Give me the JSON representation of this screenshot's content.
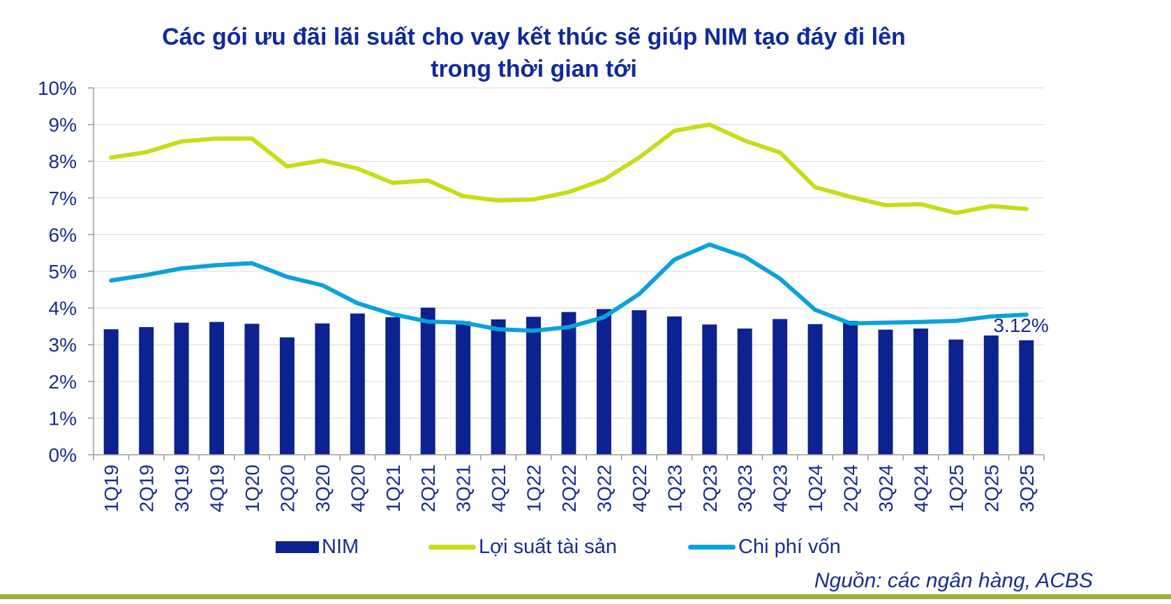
{
  "chart_data": {
    "type": "bar+line",
    "title": "Các gói ưu đãi lãi suất cho vay kết thúc sẽ giúp NIM tạo đáy đi lên trong thời gian tới",
    "title_lines": [
      "Các gói ưu đãi lãi suất cho vay kết thúc sẽ giúp NIM tạo đáy đi lên",
      "trong thời gian tới"
    ],
    "categories": [
      "1Q19",
      "2Q19",
      "3Q19",
      "4Q19",
      "1Q20",
      "2Q20",
      "3Q20",
      "4Q20",
      "1Q21",
      "2Q21",
      "3Q21",
      "4Q21",
      "1Q22",
      "2Q22",
      "3Q22",
      "4Q22",
      "1Q23",
      "2Q23",
      "3Q23",
      "4Q23",
      "1Q24",
      "2Q24",
      "3Q24",
      "4Q24",
      "1Q25",
      "2Q25",
      "3Q25"
    ],
    "ylim": [
      0,
      10
    ],
    "yticks": [
      "0%",
      "1%",
      "2%",
      "3%",
      "4%",
      "5%",
      "6%",
      "7%",
      "8%",
      "9%",
      "10%"
    ],
    "grid": true,
    "legend_position": "bottom",
    "series": [
      {
        "name": "NIM",
        "kind": "bar",
        "color": "#0c2290",
        "values": [
          3.42,
          3.48,
          3.6,
          3.62,
          3.57,
          3.2,
          3.58,
          3.85,
          3.75,
          4.01,
          3.64,
          3.69,
          3.76,
          3.89,
          3.97,
          3.94,
          3.77,
          3.55,
          3.44,
          3.7,
          3.56,
          3.65,
          3.41,
          3.44,
          3.14,
          3.25,
          3.12
        ]
      },
      {
        "name": "Lợi suất tài sản",
        "kind": "line",
        "color": "#c8dc16",
        "values": [
          8.1,
          8.25,
          8.54,
          8.62,
          8.62,
          7.86,
          8.02,
          7.8,
          7.41,
          7.48,
          7.05,
          6.93,
          6.96,
          7.16,
          7.5,
          8.1,
          8.83,
          9.0,
          8.56,
          8.24,
          7.29,
          7.03,
          6.8,
          6.83,
          6.59,
          6.78,
          6.7
        ]
      },
      {
        "name": "Chi phí vốn",
        "kind": "line",
        "color": "#0aa2dc",
        "values": [
          4.75,
          4.9,
          5.08,
          5.17,
          5.22,
          4.85,
          4.62,
          4.13,
          3.83,
          3.63,
          3.6,
          3.42,
          3.38,
          3.48,
          3.75,
          4.38,
          5.32,
          5.73,
          5.4,
          4.8,
          3.95,
          3.58,
          3.6,
          3.62,
          3.65,
          3.77,
          3.82
        ]
      }
    ],
    "annotations": [
      {
        "text": "3.12%",
        "category": "3Q25",
        "series": "NIM"
      }
    ]
  },
  "legend": {
    "nim": "NIM",
    "asset_yield": "Lợi suất tài sản",
    "funding_cost": "Chi phí vốn"
  },
  "source": "Nguồn:  các ngân hàng, ACBS",
  "colors": {
    "title": "#0f2a9a",
    "text": "#1a2d8c",
    "bar": "#0c2290",
    "asset_yield": "#c8dc16",
    "funding_cost": "#0aa2dc",
    "footer_line": "#9cb03a"
  }
}
